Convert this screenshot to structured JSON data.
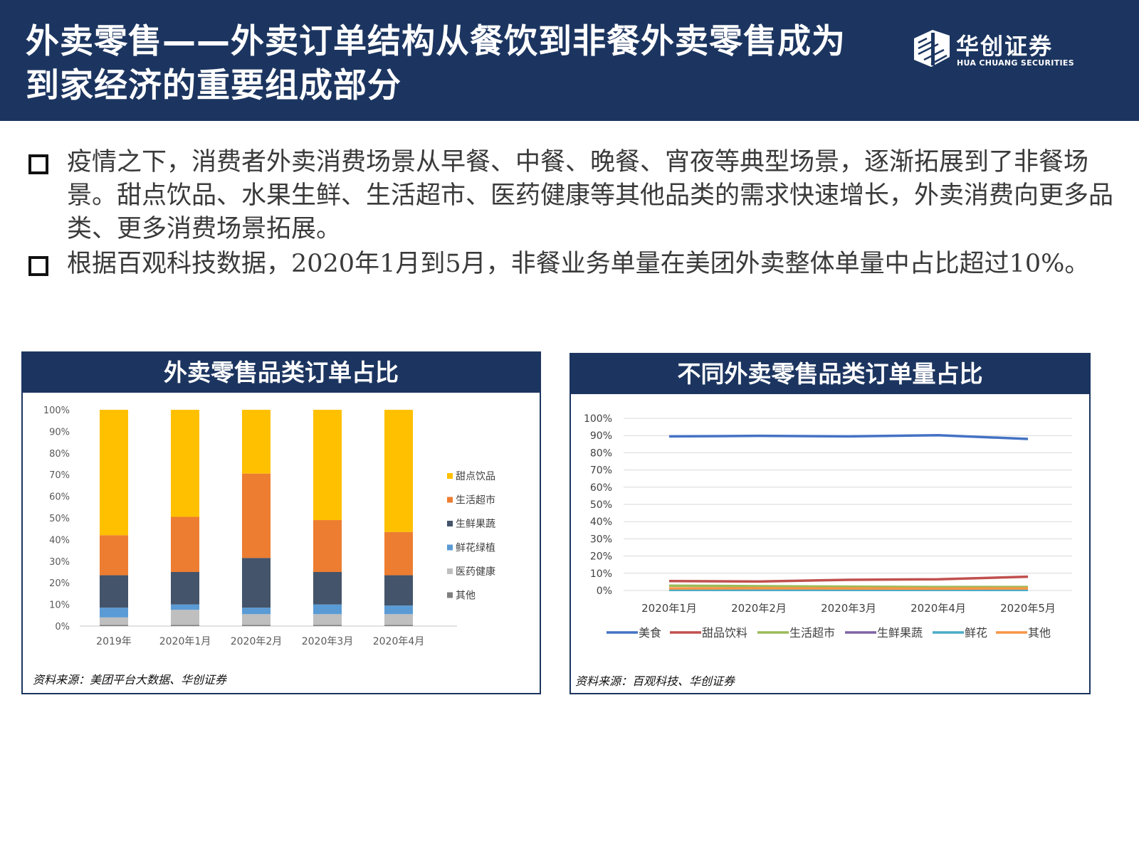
{
  "header": {
    "title": "外卖零售——外卖订单结构从餐饮到非餐外卖零售成为到家经济的重要组成部分",
    "logo_cn": "华创证券",
    "logo_en": "HUA CHUANG SECURITIES",
    "logo_icon": "hua-chuang-logo-icon"
  },
  "bullets": [
    "疫情之下，消费者外卖消费场景从早餐、中餐、晚餐、宵夜等典型场景，逐渐拓展到了非餐场景。甜点饮品、水果生鲜、生活超市、医药健康等其他品类的需求快速增长，外卖消费向更多品类、更多消费场景拓展。",
    "根据百观科技数据，2020年1月到5月，非餐业务单量在美团外卖整体单量中占比超过10%。"
  ],
  "left_panel": {
    "title": "外卖零售品类订单占比",
    "source": "资料来源：美团平台大数据、华创证券"
  },
  "right_panel": {
    "title": "不同外卖零售品类订单量占比",
    "source": "资料来源：百观科技、华创证券"
  },
  "chart_data": [
    {
      "type": "bar",
      "stacked": true,
      "categories": [
        "2019年",
        "2020年1月",
        "2020年2月",
        "2020年3月",
        "2020年4月"
      ],
      "ylim": [
        0,
        100
      ],
      "yticks": [
        "0%",
        "10%",
        "20%",
        "30%",
        "40%",
        "50%",
        "60%",
        "70%",
        "80%",
        "90%",
        "100%"
      ],
      "legend_position": "right",
      "series": [
        {
          "name": "其他",
          "color": "#7f7f7f",
          "values": [
            0.5,
            0.5,
            0.5,
            0.5,
            0.5
          ]
        },
        {
          "name": "医药健康",
          "color": "#bfbfbf",
          "values": [
            3.5,
            7,
            5,
            5,
            5
          ]
        },
        {
          "name": "鲜花绿植",
          "color": "#5b9bd5",
          "values": [
            4.5,
            2.5,
            3,
            4.5,
            4
          ]
        },
        {
          "name": "生鲜果蔬",
          "color": "#44546a",
          "values": [
            15,
            15,
            23,
            15,
            14
          ]
        },
        {
          "name": "生活超市",
          "color": "#ed7d31",
          "values": [
            18.5,
            25.5,
            39,
            24,
            20
          ]
        },
        {
          "name": "甜点饮品",
          "color": "#ffc000",
          "values": [
            58,
            49.5,
            29.5,
            51,
            56.5
          ]
        }
      ]
    },
    {
      "type": "line",
      "categories": [
        "2020年1月",
        "2020年2月",
        "2020年3月",
        "2020年4月",
        "2020年5月"
      ],
      "ylim": [
        0,
        100
      ],
      "yticks": [
        "0%",
        "10%",
        "20%",
        "30%",
        "40%",
        "50%",
        "60%",
        "70%",
        "80%",
        "90%",
        "100%"
      ],
      "grid": true,
      "legend_position": "bottom",
      "series": [
        {
          "name": "美食",
          "color": "#4472c4",
          "values": [
            89.5,
            89.8,
            89.5,
            90.2,
            88
          ]
        },
        {
          "name": "甜品饮料",
          "color": "#c0504d",
          "values": [
            5.5,
            5.2,
            6.2,
            6.5,
            8
          ]
        },
        {
          "name": "生活超市",
          "color": "#9bbb59",
          "values": [
            2.8,
            2.5,
            2.2,
            2.0,
            2.0
          ]
        },
        {
          "name": "生鲜果蔬",
          "color": "#8064a2",
          "values": [
            0.5,
            0.5,
            0.6,
            0.5,
            0.5
          ]
        },
        {
          "name": "鲜花",
          "color": "#4bacc6",
          "values": [
            0.3,
            0.3,
            0.3,
            0.3,
            0.3
          ]
        },
        {
          "name": "其他",
          "color": "#f79646",
          "values": [
            1.2,
            1.3,
            1.2,
            1.1,
            1.2
          ]
        }
      ]
    }
  ]
}
